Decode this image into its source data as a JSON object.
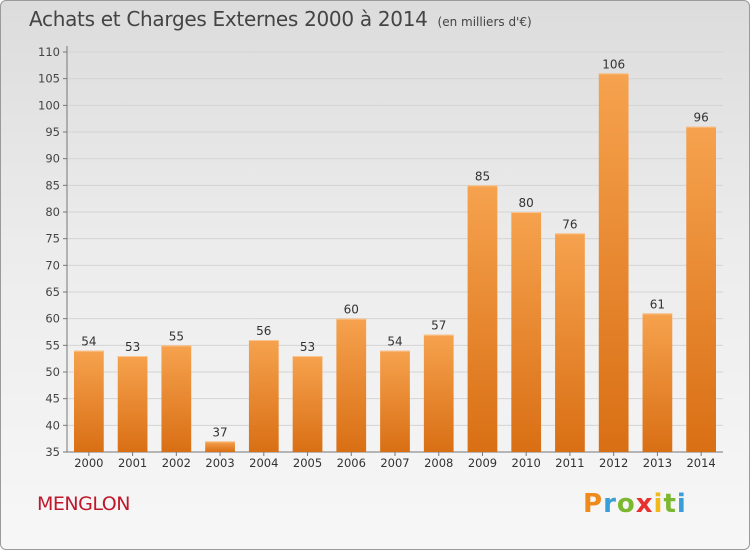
{
  "header": {
    "title": "Achats et Charges Externes 2000 à 2014",
    "subtitle": "(en milliers d'€)"
  },
  "footer": {
    "commune": "MENGLON",
    "logo_text": "Proxiti",
    "logo_letter_colors": [
      "#f08a1c",
      "#3a9fd8",
      "#7cb82f",
      "#e8312f",
      "#f3b81b",
      "#7cb82f",
      "#3a9fd8"
    ]
  },
  "chart_data": {
    "type": "bar",
    "title": "Achats et Charges Externes 2000 à 2014",
    "subtitle": "(en milliers d'€)",
    "categories": [
      "2000",
      "2001",
      "2002",
      "2003",
      "2004",
      "2005",
      "2006",
      "2007",
      "2008",
      "2009",
      "2010",
      "2011",
      "2012",
      "2013",
      "2014"
    ],
    "values": [
      54,
      53,
      55,
      37,
      56,
      53,
      60,
      54,
      57,
      85,
      80,
      76,
      106,
      61,
      96
    ],
    "ylim": [
      35,
      110
    ],
    "yticks": [
      35,
      40,
      45,
      50,
      55,
      60,
      65,
      70,
      75,
      80,
      85,
      90,
      95,
      100,
      105,
      110
    ],
    "grid": true,
    "bar_color_light": "#f6a24e",
    "bar_color_dark": "#d96f14",
    "xlabel": "",
    "ylabel": ""
  }
}
